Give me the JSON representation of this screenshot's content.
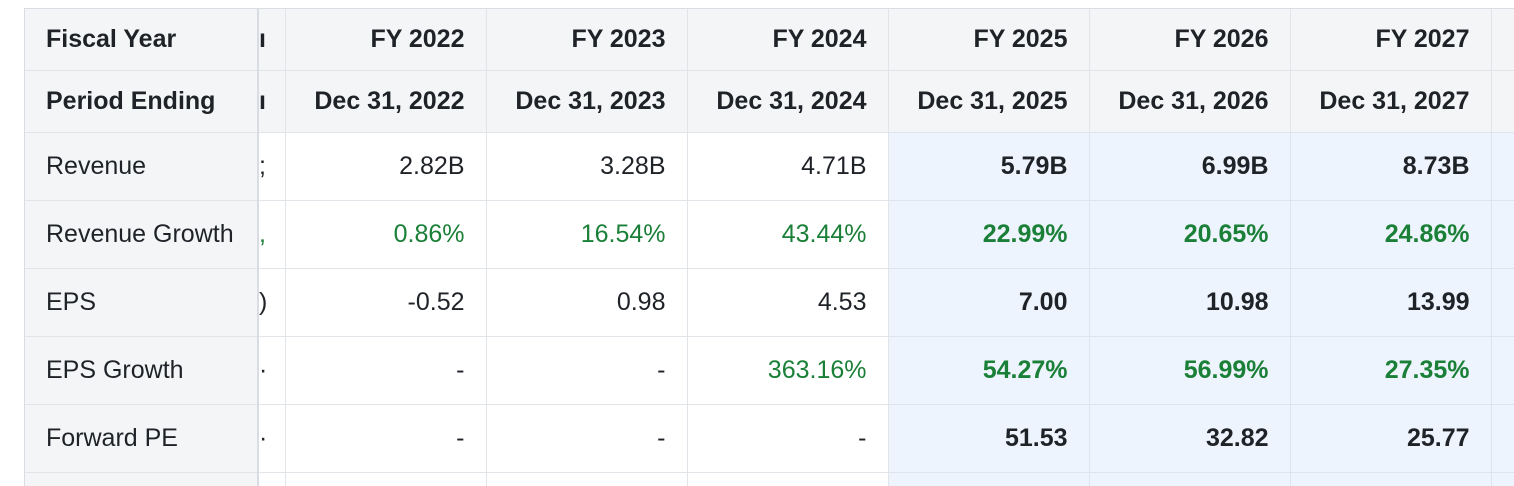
{
  "table": {
    "columns": [
      {
        "fiscal_year": "FY 2022",
        "period_ending": "Dec 31, 2022",
        "estimate": false
      },
      {
        "fiscal_year": "FY 2023",
        "period_ending": "Dec 31, 2023",
        "estimate": false
      },
      {
        "fiscal_year": "FY 2024",
        "period_ending": "Dec 31, 2024",
        "estimate": false
      },
      {
        "fiscal_year": "FY 2025",
        "period_ending": "Dec 31, 2025",
        "estimate": true
      },
      {
        "fiscal_year": "FY 2026",
        "period_ending": "Dec 31, 2026",
        "estimate": true
      },
      {
        "fiscal_year": "FY 2027",
        "period_ending": "Dec 31, 2027",
        "estimate": true
      }
    ],
    "header_labels": {
      "fiscal_year": "Fiscal Year",
      "period_ending": "Period Ending"
    },
    "rows": [
      {
        "label": "Revenue",
        "values": [
          "2.82B",
          "3.28B",
          "4.71B",
          "5.79B",
          "6.99B",
          "8.73B"
        ]
      },
      {
        "label": "Revenue Growth",
        "values": [
          "0.86%",
          "16.54%",
          "43.44%",
          "22.99%",
          "20.65%",
          "24.86%"
        ]
      },
      {
        "label": "EPS",
        "values": [
          "-0.52",
          "0.98",
          "4.53",
          "7.00",
          "10.98",
          "13.99"
        ]
      },
      {
        "label": "EPS Growth",
        "values": [
          "-",
          "-",
          "363.16%",
          "54.27%",
          "56.99%",
          "27.35%"
        ]
      },
      {
        "label": "Forward PE",
        "values": [
          "-",
          "-",
          "-",
          "51.53",
          "32.82",
          "25.77"
        ]
      }
    ]
  },
  "colors": {
    "positive_growth": "#1a7f37",
    "estimate_bg": "#eef4fd",
    "header_bg": "#f4f5f7"
  }
}
